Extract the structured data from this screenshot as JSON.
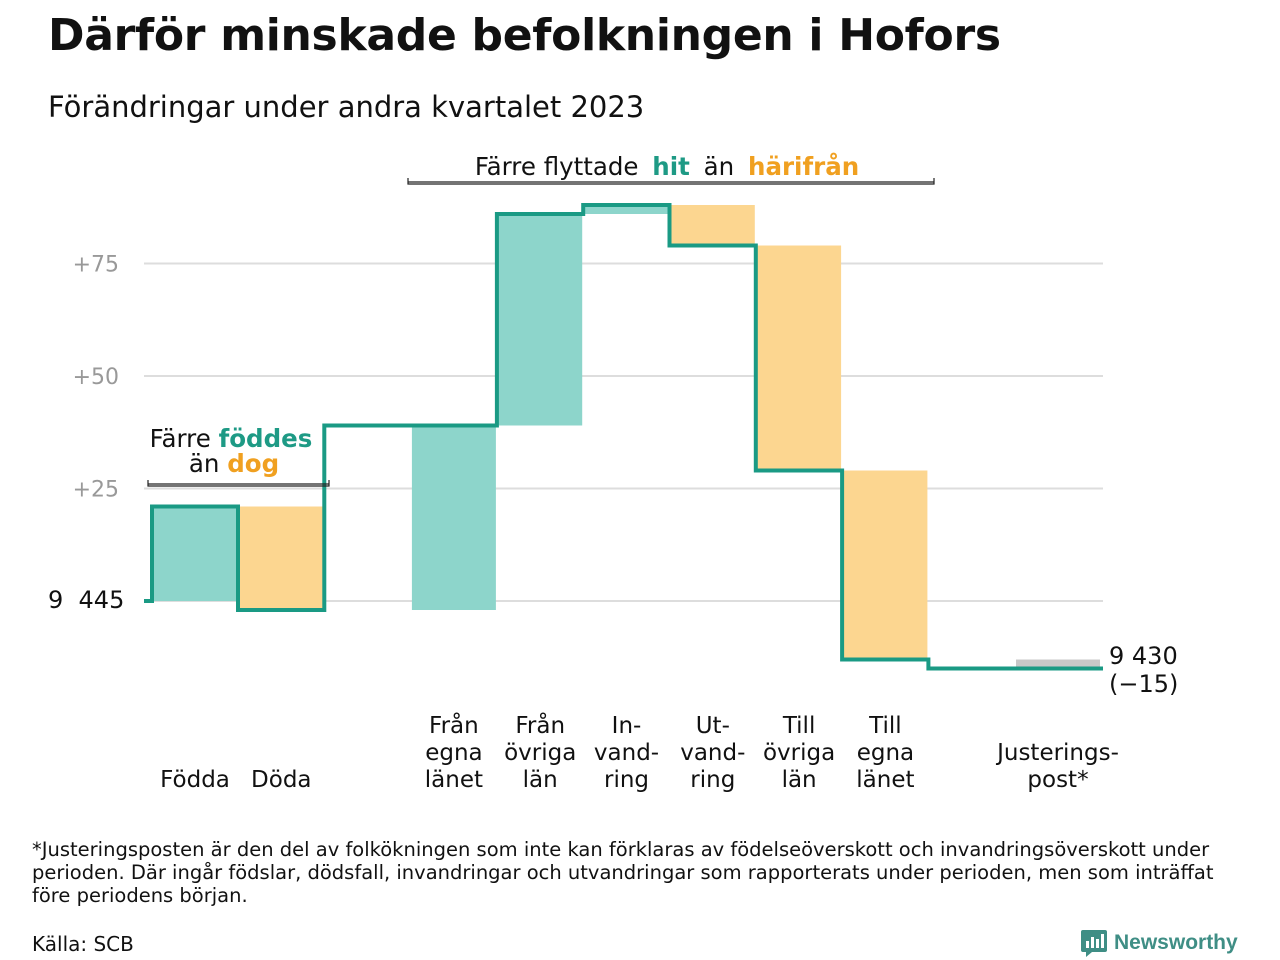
{
  "title": "Därför minskade befolkningen i Hofors",
  "subtitle": "Förändringar under andra kvartalet 2023",
  "footnote": "*Justeringsposten är den del av folkökningen som inte kan förklaras av födelseöverskott och invandringsöverskott under perioden. Där ingår födslar, dödsfall, invandringar och utvandringar som rapporterats under perioden, men som inträffat före periodens början.",
  "source": "Källa: SCB",
  "brand": "Newsworthy",
  "colors": {
    "in": "#8dd5cb",
    "out": "#fcd690",
    "adjust": "#c8c8c8",
    "line": "#1a9a84",
    "green_text": "#1e9a85",
    "orange_text": "#f0a020",
    "grid": "#dddddd",
    "tick": "#999999"
  },
  "annotations": {
    "births": {
      "prefix": "Färre",
      "green": "föddes",
      "prefix2": "än",
      "orange": "dog"
    },
    "moves": {
      "prefix": "Färre flyttade",
      "green": "hit",
      "middle": "än",
      "orange": "härifrån"
    }
  },
  "chart_data": {
    "type": "waterfall",
    "start": {
      "label": "9  445",
      "value": 9445
    },
    "end": {
      "label": "9 430",
      "change_label": "(−15)",
      "value": 9430
    },
    "ytick_labels": [
      "+25",
      "+50",
      "+75"
    ],
    "yticks": [
      25,
      50,
      75
    ],
    "ylim": [
      -20,
      90
    ],
    "grid": true,
    "steps": [
      {
        "label": [
          "Födda"
        ],
        "change": 21,
        "kind": "in"
      },
      {
        "label": [
          "Döda"
        ],
        "change": -23,
        "kind": "out"
      },
      {
        "label": [
          "Från",
          "egna",
          "länet"
        ],
        "change": 41,
        "kind": "in"
      },
      {
        "label": [
          "Från",
          "övriga",
          "län"
        ],
        "change": 47,
        "kind": "in"
      },
      {
        "label": [
          "In-",
          "vand-",
          "ring"
        ],
        "change": 2,
        "kind": "in"
      },
      {
        "label": [
          "Ut-",
          "vand-",
          "ring"
        ],
        "change": -9,
        "kind": "out"
      },
      {
        "label": [
          "Till",
          "övriga",
          "län"
        ],
        "change": -50,
        "kind": "out"
      },
      {
        "label": [
          "Till",
          "egna",
          "länet"
        ],
        "change": -42,
        "kind": "out"
      },
      {
        "label": [
          "Justerings-",
          "post*"
        ],
        "change": -2,
        "kind": "adjust"
      }
    ]
  }
}
